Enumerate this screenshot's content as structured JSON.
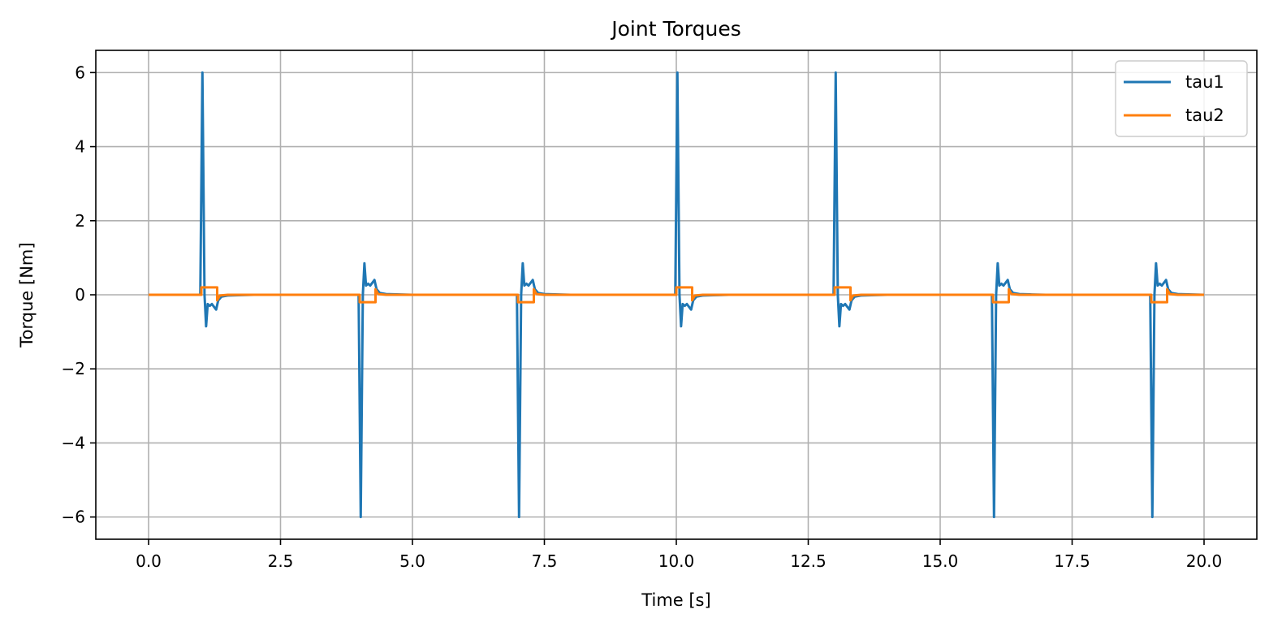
{
  "chart_data": {
    "type": "line",
    "title": "Joint Torques",
    "xlabel": "Time [s]",
    "ylabel": "Torque [Nm]",
    "xlim": [
      -1.0,
      21.0
    ],
    "ylim": [
      -6.6,
      6.6
    ],
    "xticks": [
      0.0,
      2.5,
      5.0,
      7.5,
      10.0,
      12.5,
      15.0,
      17.5,
      20.0
    ],
    "xtick_labels": [
      "0.0",
      "2.5",
      "5.0",
      "7.5",
      "10.0",
      "12.5",
      "15.0",
      "17.5",
      "20.0"
    ],
    "yticks": [
      6,
      4,
      2,
      0,
      -2,
      -4,
      -6
    ],
    "ytick_labels": [
      "6",
      "4",
      "2",
      "0",
      "−2",
      "−4",
      "−6"
    ],
    "grid": true,
    "legend_position": "top-right",
    "series": [
      {
        "name": "tau1",
        "color": "#1f77b4",
        "x": [
          0.0,
          0.98,
          1.02,
          1.06,
          1.09,
          1.12,
          1.16,
          1.2,
          1.28,
          1.32,
          1.38,
          1.5,
          1.7,
          2.0,
          3.98,
          4.02,
          4.06,
          4.09,
          4.12,
          4.16,
          4.2,
          4.28,
          4.32,
          4.38,
          4.5,
          4.7,
          5.0,
          6.98,
          7.02,
          7.06,
          7.09,
          7.12,
          7.16,
          7.2,
          7.28,
          7.32,
          7.38,
          7.5,
          7.7,
          8.0,
          9.98,
          10.02,
          10.06,
          10.09,
          10.12,
          10.16,
          10.2,
          10.28,
          10.32,
          10.38,
          10.5,
          10.7,
          11.0,
          12.98,
          13.02,
          13.06,
          13.09,
          13.12,
          13.16,
          13.2,
          13.28,
          13.32,
          13.38,
          13.5,
          13.7,
          14.0,
          15.98,
          16.02,
          16.06,
          16.09,
          16.12,
          16.16,
          16.2,
          16.28,
          16.32,
          16.38,
          16.5,
          16.7,
          17.0,
          18.98,
          19.02,
          19.06,
          19.09,
          19.12,
          19.16,
          19.2,
          19.28,
          19.32,
          19.38,
          19.5,
          19.7,
          20.0
        ],
        "y": [
          0,
          0,
          6.0,
          0,
          -0.85,
          -0.25,
          -0.3,
          -0.25,
          -0.4,
          -0.15,
          -0.05,
          -0.02,
          -0.01,
          0,
          0,
          -6.0,
          0,
          0.85,
          0.25,
          0.3,
          0.25,
          0.4,
          0.15,
          0.05,
          0.02,
          0.01,
          0,
          0,
          -6.0,
          0,
          0.85,
          0.25,
          0.3,
          0.25,
          0.4,
          0.15,
          0.05,
          0.02,
          0.01,
          0,
          0,
          6.0,
          0,
          -0.85,
          -0.25,
          -0.3,
          -0.25,
          -0.4,
          -0.15,
          -0.05,
          -0.02,
          -0.01,
          0,
          0,
          6.0,
          0,
          -0.85,
          -0.25,
          -0.3,
          -0.25,
          -0.4,
          -0.15,
          -0.05,
          -0.02,
          -0.01,
          0,
          0,
          -6.0,
          0,
          0.85,
          0.25,
          0.3,
          0.25,
          0.4,
          0.15,
          0.05,
          0.02,
          0.01,
          0,
          0,
          -6.0,
          0,
          0.85,
          0.25,
          0.3,
          0.25,
          0.4,
          0.15,
          0.05,
          0.02,
          0.01,
          0
        ]
      },
      {
        "name": "tau2",
        "color": "#ff7f0e",
        "x": [
          0.0,
          1.0,
          1.0,
          1.3,
          1.3,
          1.35,
          1.5,
          4.0,
          4.0,
          4.3,
          4.3,
          4.35,
          4.5,
          7.0,
          7.0,
          7.3,
          7.3,
          7.35,
          7.5,
          10.0,
          10.0,
          10.3,
          10.3,
          10.35,
          10.5,
          13.0,
          13.0,
          13.3,
          13.3,
          13.35,
          13.5,
          16.0,
          16.0,
          16.3,
          16.3,
          16.35,
          16.5,
          19.0,
          19.0,
          19.3,
          19.3,
          19.35,
          19.5,
          20.0
        ],
        "y": [
          0,
          0,
          0.2,
          0.2,
          -0.15,
          -0.02,
          0,
          0,
          -0.2,
          -0.2,
          0.15,
          0.02,
          0,
          0,
          -0.2,
          -0.2,
          0.15,
          0.02,
          0,
          0,
          0.2,
          0.2,
          -0.15,
          -0.02,
          0,
          0,
          0.2,
          0.2,
          -0.15,
          -0.02,
          0,
          0,
          -0.2,
          -0.2,
          0.15,
          0.02,
          0,
          0,
          -0.2,
          -0.2,
          0.15,
          0.02,
          0,
          0
        ]
      }
    ]
  }
}
